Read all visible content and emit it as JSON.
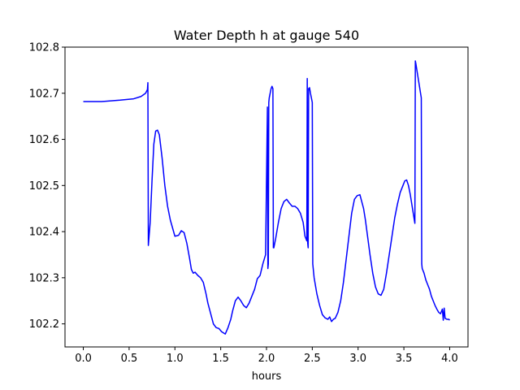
{
  "chart_data": {
    "type": "line",
    "title": "Water Depth h at gauge 540",
    "xlabel": "hours",
    "ylabel": "",
    "xlim": [
      -0.2,
      4.2
    ],
    "ylim": [
      102.15,
      102.8
    ],
    "xticks": [
      0.0,
      0.5,
      1.0,
      1.5,
      2.0,
      2.5,
      3.0,
      3.5,
      4.0
    ],
    "xtick_labels": [
      "0.0",
      "0.5",
      "1.0",
      "1.5",
      "2.0",
      "2.5",
      "3.0",
      "3.5",
      "4.0"
    ],
    "yticks": [
      102.2,
      102.3,
      102.4,
      102.5,
      102.6,
      102.7,
      102.8
    ],
    "ytick_labels": [
      "102.2",
      "102.3",
      "102.4",
      "102.5",
      "102.6",
      "102.7",
      "102.8"
    ],
    "grid": false,
    "legend": "none",
    "series": [
      {
        "color": "#0000ff",
        "x": [
          0.0,
          0.2,
          0.4,
          0.55,
          0.63,
          0.68,
          0.7,
          0.705,
          0.71,
          0.73,
          0.75,
          0.77,
          0.79,
          0.81,
          0.83,
          0.86,
          0.89,
          0.92,
          0.95,
          1.0,
          1.04,
          1.07,
          1.1,
          1.13,
          1.16,
          1.18,
          1.2,
          1.22,
          1.25,
          1.28,
          1.31,
          1.34,
          1.36,
          1.38,
          1.4,
          1.42,
          1.45,
          1.48,
          1.51,
          1.55,
          1.58,
          1.61,
          1.63,
          1.66,
          1.69,
          1.72,
          1.75,
          1.78,
          1.81,
          1.84,
          1.87,
          1.9,
          1.93,
          1.96,
          1.99,
          2.01,
          2.015,
          2.02,
          2.025,
          2.03,
          2.04,
          2.05,
          2.06,
          2.07,
          2.075,
          2.08,
          2.1,
          2.13,
          2.16,
          2.19,
          2.22,
          2.25,
          2.28,
          2.31,
          2.34,
          2.37,
          2.4,
          2.42,
          2.44,
          2.445,
          2.45,
          2.455,
          2.46,
          2.47,
          2.48,
          2.49,
          2.5,
          2.505,
          2.52,
          2.55,
          2.58,
          2.61,
          2.64,
          2.67,
          2.69,
          2.71,
          2.73,
          2.75,
          2.78,
          2.81,
          2.84,
          2.87,
          2.9,
          2.93,
          2.96,
          2.99,
          3.02,
          3.04,
          3.06,
          3.08,
          3.1,
          3.13,
          3.16,
          3.19,
          3.22,
          3.25,
          3.28,
          3.31,
          3.34,
          3.37,
          3.4,
          3.43,
          3.46,
          3.49,
          3.51,
          3.53,
          3.55,
          3.57,
          3.59,
          3.61,
          3.62,
          3.625,
          3.63,
          3.65,
          3.67,
          3.69,
          3.695,
          3.7,
          3.72,
          3.74,
          3.76,
          3.78,
          3.8,
          3.82,
          3.84,
          3.86,
          3.88,
          3.9,
          3.92,
          3.93,
          3.94,
          3.95,
          3.97,
          3.99,
          4.0
        ],
        "y": [
          102.682,
          102.682,
          102.685,
          102.688,
          102.693,
          102.7,
          102.708,
          102.723,
          102.37,
          102.42,
          102.51,
          102.59,
          102.618,
          102.62,
          102.61,
          102.56,
          102.5,
          102.455,
          102.425,
          102.39,
          102.392,
          102.402,
          102.398,
          102.375,
          102.342,
          102.318,
          102.31,
          102.312,
          102.305,
          102.3,
          102.29,
          102.265,
          102.245,
          102.23,
          102.215,
          102.2,
          102.192,
          102.19,
          102.183,
          102.178,
          102.192,
          102.21,
          102.228,
          102.25,
          102.258,
          102.25,
          102.24,
          102.235,
          102.245,
          102.26,
          102.275,
          102.298,
          102.305,
          102.33,
          102.35,
          102.67,
          102.32,
          102.33,
          102.68,
          102.69,
          102.7,
          102.71,
          102.715,
          102.71,
          102.365,
          102.365,
          102.385,
          102.42,
          102.45,
          102.465,
          102.47,
          102.462,
          102.455,
          102.455,
          102.45,
          102.44,
          102.42,
          102.39,
          102.38,
          102.732,
          102.375,
          102.365,
          102.71,
          102.712,
          102.7,
          102.69,
          102.68,
          102.33,
          102.3,
          102.265,
          102.24,
          102.22,
          102.213,
          102.21,
          102.215,
          102.205,
          102.21,
          102.212,
          102.225,
          102.25,
          102.29,
          102.34,
          102.39,
          102.44,
          102.47,
          102.478,
          102.48,
          102.465,
          102.45,
          102.425,
          102.395,
          102.35,
          102.31,
          102.28,
          102.265,
          102.262,
          102.275,
          102.31,
          102.35,
          102.39,
          102.43,
          102.46,
          102.485,
          102.5,
          102.51,
          102.512,
          102.5,
          102.48,
          102.455,
          102.43,
          102.418,
          102.77,
          102.765,
          102.74,
          102.715,
          102.69,
          102.33,
          102.32,
          102.31,
          102.295,
          102.285,
          102.275,
          102.26,
          102.25,
          102.24,
          102.232,
          102.225,
          102.222,
          102.232,
          102.208,
          102.234,
          102.212,
          102.21,
          102.21,
          102.208
        ]
      }
    ]
  }
}
